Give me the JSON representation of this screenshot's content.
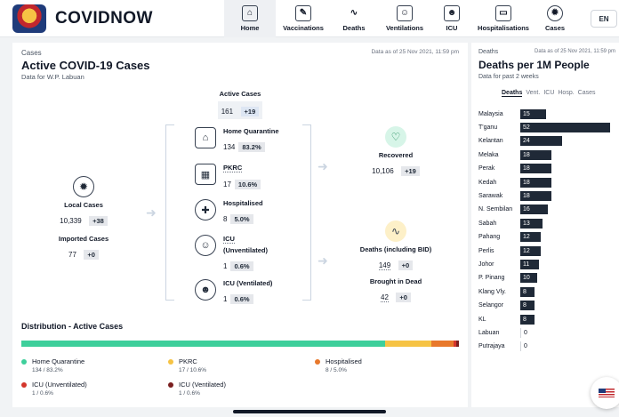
{
  "app": {
    "title": "COVIDNOW",
    "lang": "EN"
  },
  "nav": [
    {
      "label": "Home",
      "icon": "home-icon",
      "active": true
    },
    {
      "label": "Vaccinations",
      "icon": "syringe-icon"
    },
    {
      "label": "Deaths",
      "icon": "pulse-icon"
    },
    {
      "label": "Ventilations",
      "icon": "ventilator-icon"
    },
    {
      "label": "ICU",
      "icon": "icu-icon"
    },
    {
      "label": "Hospitalisations",
      "icon": "bed-icon"
    },
    {
      "label": "Cases",
      "icon": "virus-icon"
    }
  ],
  "active": {
    "category": "Cases",
    "date": "Data as of 25 Nov 2021, 11:59 pm",
    "title": "Active COVID-19 Cases",
    "subtitle": "Data for W.P. Labuan",
    "active_cases": {
      "label": "Active Cases",
      "value": "161",
      "delta": "+19"
    },
    "local": {
      "label": "Local Cases",
      "value": "10,339",
      "delta": "+38"
    },
    "imported": {
      "label": "Imported Cases",
      "value": "77",
      "delta": "+0"
    },
    "home_quarantine": {
      "label": "Home Quarantine",
      "value": "134",
      "pct": "83.2%"
    },
    "pkrc": {
      "label": "PKRC",
      "value": "17",
      "pct": "10.6%"
    },
    "hospitalised": {
      "label": "Hospitalised",
      "value": "8",
      "pct": "5.0%"
    },
    "icu_unvent": {
      "label1": "ICU",
      "label2": "(Unventilated)",
      "value": "1",
      "pct": "0.6%"
    },
    "icu_vent": {
      "label": "ICU (Ventilated)",
      "value": "1",
      "pct": "0.6%"
    },
    "recovered": {
      "label": "Recovered",
      "value": "10,106",
      "delta": "+19"
    },
    "deaths": {
      "label": "Deaths (including BID)",
      "value": "149",
      "delta": "+0"
    },
    "bid": {
      "label": "Brought in Dead",
      "value": "42",
      "delta": "+0"
    }
  },
  "distribution": {
    "title": "Distribution - Active Cases",
    "segments": [
      {
        "label": "Home Quarantine",
        "sub": "134 / 83.2%",
        "fraction": 0.832,
        "color": "#3ecf9b"
      },
      {
        "label": "PKRC",
        "sub": "17 / 10.6%",
        "fraction": 0.106,
        "color": "#f6c344"
      },
      {
        "label": "Hospitalised",
        "sub": "8 / 5.0%",
        "fraction": 0.05,
        "color": "#e8782b"
      },
      {
        "label": "ICU (Unventilated)",
        "sub": "1 / 0.6%",
        "fraction": 0.006,
        "color": "#d4352b"
      },
      {
        "label": "ICU (Ventilated)",
        "sub": "1 / 0.6%",
        "fraction": 0.006,
        "color": "#7a1f1f"
      }
    ]
  },
  "deaths_panel": {
    "category": "Deaths",
    "date": "Data as of 25 Nov 2021, 11:59 pm",
    "title": "Deaths per 1M People",
    "subtitle": "Data for past 2 weeks",
    "tabs": [
      "Deaths",
      "Vent.",
      "ICU",
      "Hosp.",
      "Cases"
    ],
    "active_tab": "Deaths",
    "bar_color": "#1f2937"
  },
  "chart_data": {
    "type": "bar",
    "orientation": "horizontal",
    "categories": [
      "Malaysia",
      "T'ganu",
      "Kelantan",
      "Melaka",
      "Perak",
      "Kedah",
      "Sarawak",
      "N. Sembilan",
      "Sabah",
      "Pahang",
      "Perlis",
      "Johor",
      "P. Pinang",
      "Klang Vly.",
      "Selangor",
      "KL",
      "Labuan",
      "Putrajaya"
    ],
    "values": [
      15,
      52,
      24,
      18,
      18,
      18,
      18,
      16,
      13,
      12,
      12,
      11,
      10,
      8,
      8,
      8,
      0,
      0
    ]
  }
}
